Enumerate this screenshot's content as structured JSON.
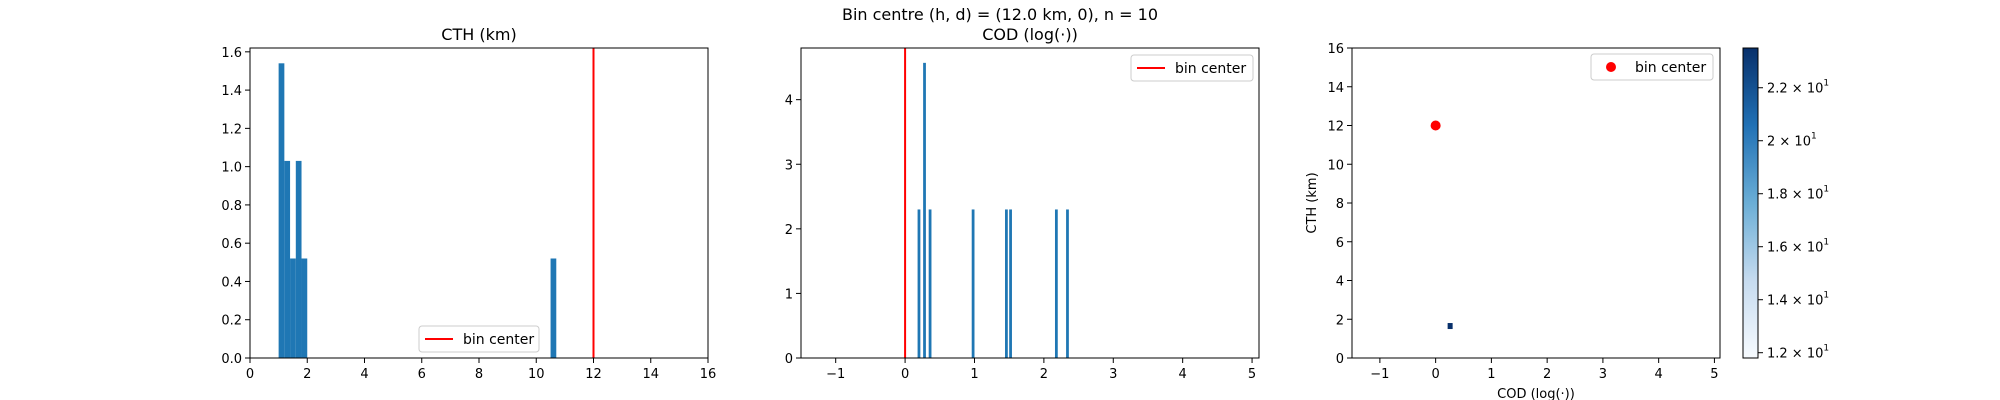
{
  "suptitle": "Bin centre (h, d) = (12.0 km, 0), n = 10",
  "colors": {
    "bar": "#1f77b4",
    "marker": "#ff0000",
    "colormap": [
      "#f7fbff",
      "#08306b"
    ]
  },
  "chart_data": [
    {
      "type": "bar",
      "title": "CTH (km)",
      "xlabel": "",
      "ylabel": "",
      "xlim": [
        0,
        16
      ],
      "ylim": [
        0,
        1.62
      ],
      "xticks": [
        "0",
        "2",
        "4",
        "6",
        "8",
        "10",
        "12",
        "14",
        "16"
      ],
      "yticks": [
        "0.0",
        "0.2",
        "0.4",
        "0.6",
        "0.8",
        "1.0",
        "1.2",
        "1.4",
        "1.6"
      ],
      "bin_width": 0.2,
      "bins": [
        {
          "x": 1.0,
          "value": 1.54
        },
        {
          "x": 1.2,
          "value": 1.03
        },
        {
          "x": 1.4,
          "value": 0.52
        },
        {
          "x": 1.6,
          "value": 1.03
        },
        {
          "x": 1.8,
          "value": 0.52
        },
        {
          "x": 10.5,
          "value": 0.52
        }
      ],
      "vline": 12,
      "legend": {
        "label": "bin center",
        "placement": "lower-right"
      }
    },
    {
      "type": "bar",
      "title": "COD (log(·))",
      "xlabel": "",
      "ylabel": "",
      "xlim": [
        -1.5,
        5.1
      ],
      "ylim": [
        0,
        4.8
      ],
      "xticks": [
        "−1",
        "0",
        "1",
        "2",
        "3",
        "4",
        "5"
      ],
      "yticks": [
        "0",
        "1",
        "2",
        "3",
        "4"
      ],
      "bin_width": 0.04,
      "bins": [
        {
          "x": 0.18,
          "value": 2.3
        },
        {
          "x": 0.26,
          "value": 4.57
        },
        {
          "x": 0.34,
          "value": 2.3
        },
        {
          "x": 0.96,
          "value": 2.3
        },
        {
          "x": 1.44,
          "value": 2.3
        },
        {
          "x": 1.5,
          "value": 2.3
        },
        {
          "x": 2.16,
          "value": 2.3
        },
        {
          "x": 2.32,
          "value": 2.3
        }
      ],
      "vline": 0,
      "legend": {
        "label": "bin center",
        "placement": "upper-right"
      }
    },
    {
      "type": "heatmap",
      "title": "",
      "xlabel": "COD (log(·))",
      "ylabel": "CTH (km)",
      "xlim": [
        -1.5,
        5.1
      ],
      "ylim": [
        0,
        16
      ],
      "xticks": [
        "−1",
        "0",
        "1",
        "2",
        "3",
        "4",
        "5"
      ],
      "yticks": [
        "0",
        "2",
        "4",
        "6",
        "8",
        "10",
        "12",
        "14",
        "16"
      ],
      "cells": [
        {
          "x": 0.26,
          "y": 1.65,
          "value": 23
        }
      ],
      "point": {
        "x": 0,
        "y": 12
      },
      "legend": {
        "label": "bin center",
        "placement": "upper-right"
      },
      "colorbar": {
        "range": [
          11.8,
          23.5
        ],
        "ticks": [
          {
            "value": 12,
            "base": "1.2 × 10",
            "exp": "1"
          },
          {
            "value": 14,
            "base": "1.4 × 10",
            "exp": "1"
          },
          {
            "value": 16,
            "base": "1.6 × 10",
            "exp": "1"
          },
          {
            "value": 18,
            "base": "1.8 × 10",
            "exp": "1"
          },
          {
            "value": 20,
            "base": "2 × 10",
            "exp": "1"
          },
          {
            "value": 22,
            "base": "2.2 × 10",
            "exp": "1"
          }
        ]
      }
    }
  ]
}
